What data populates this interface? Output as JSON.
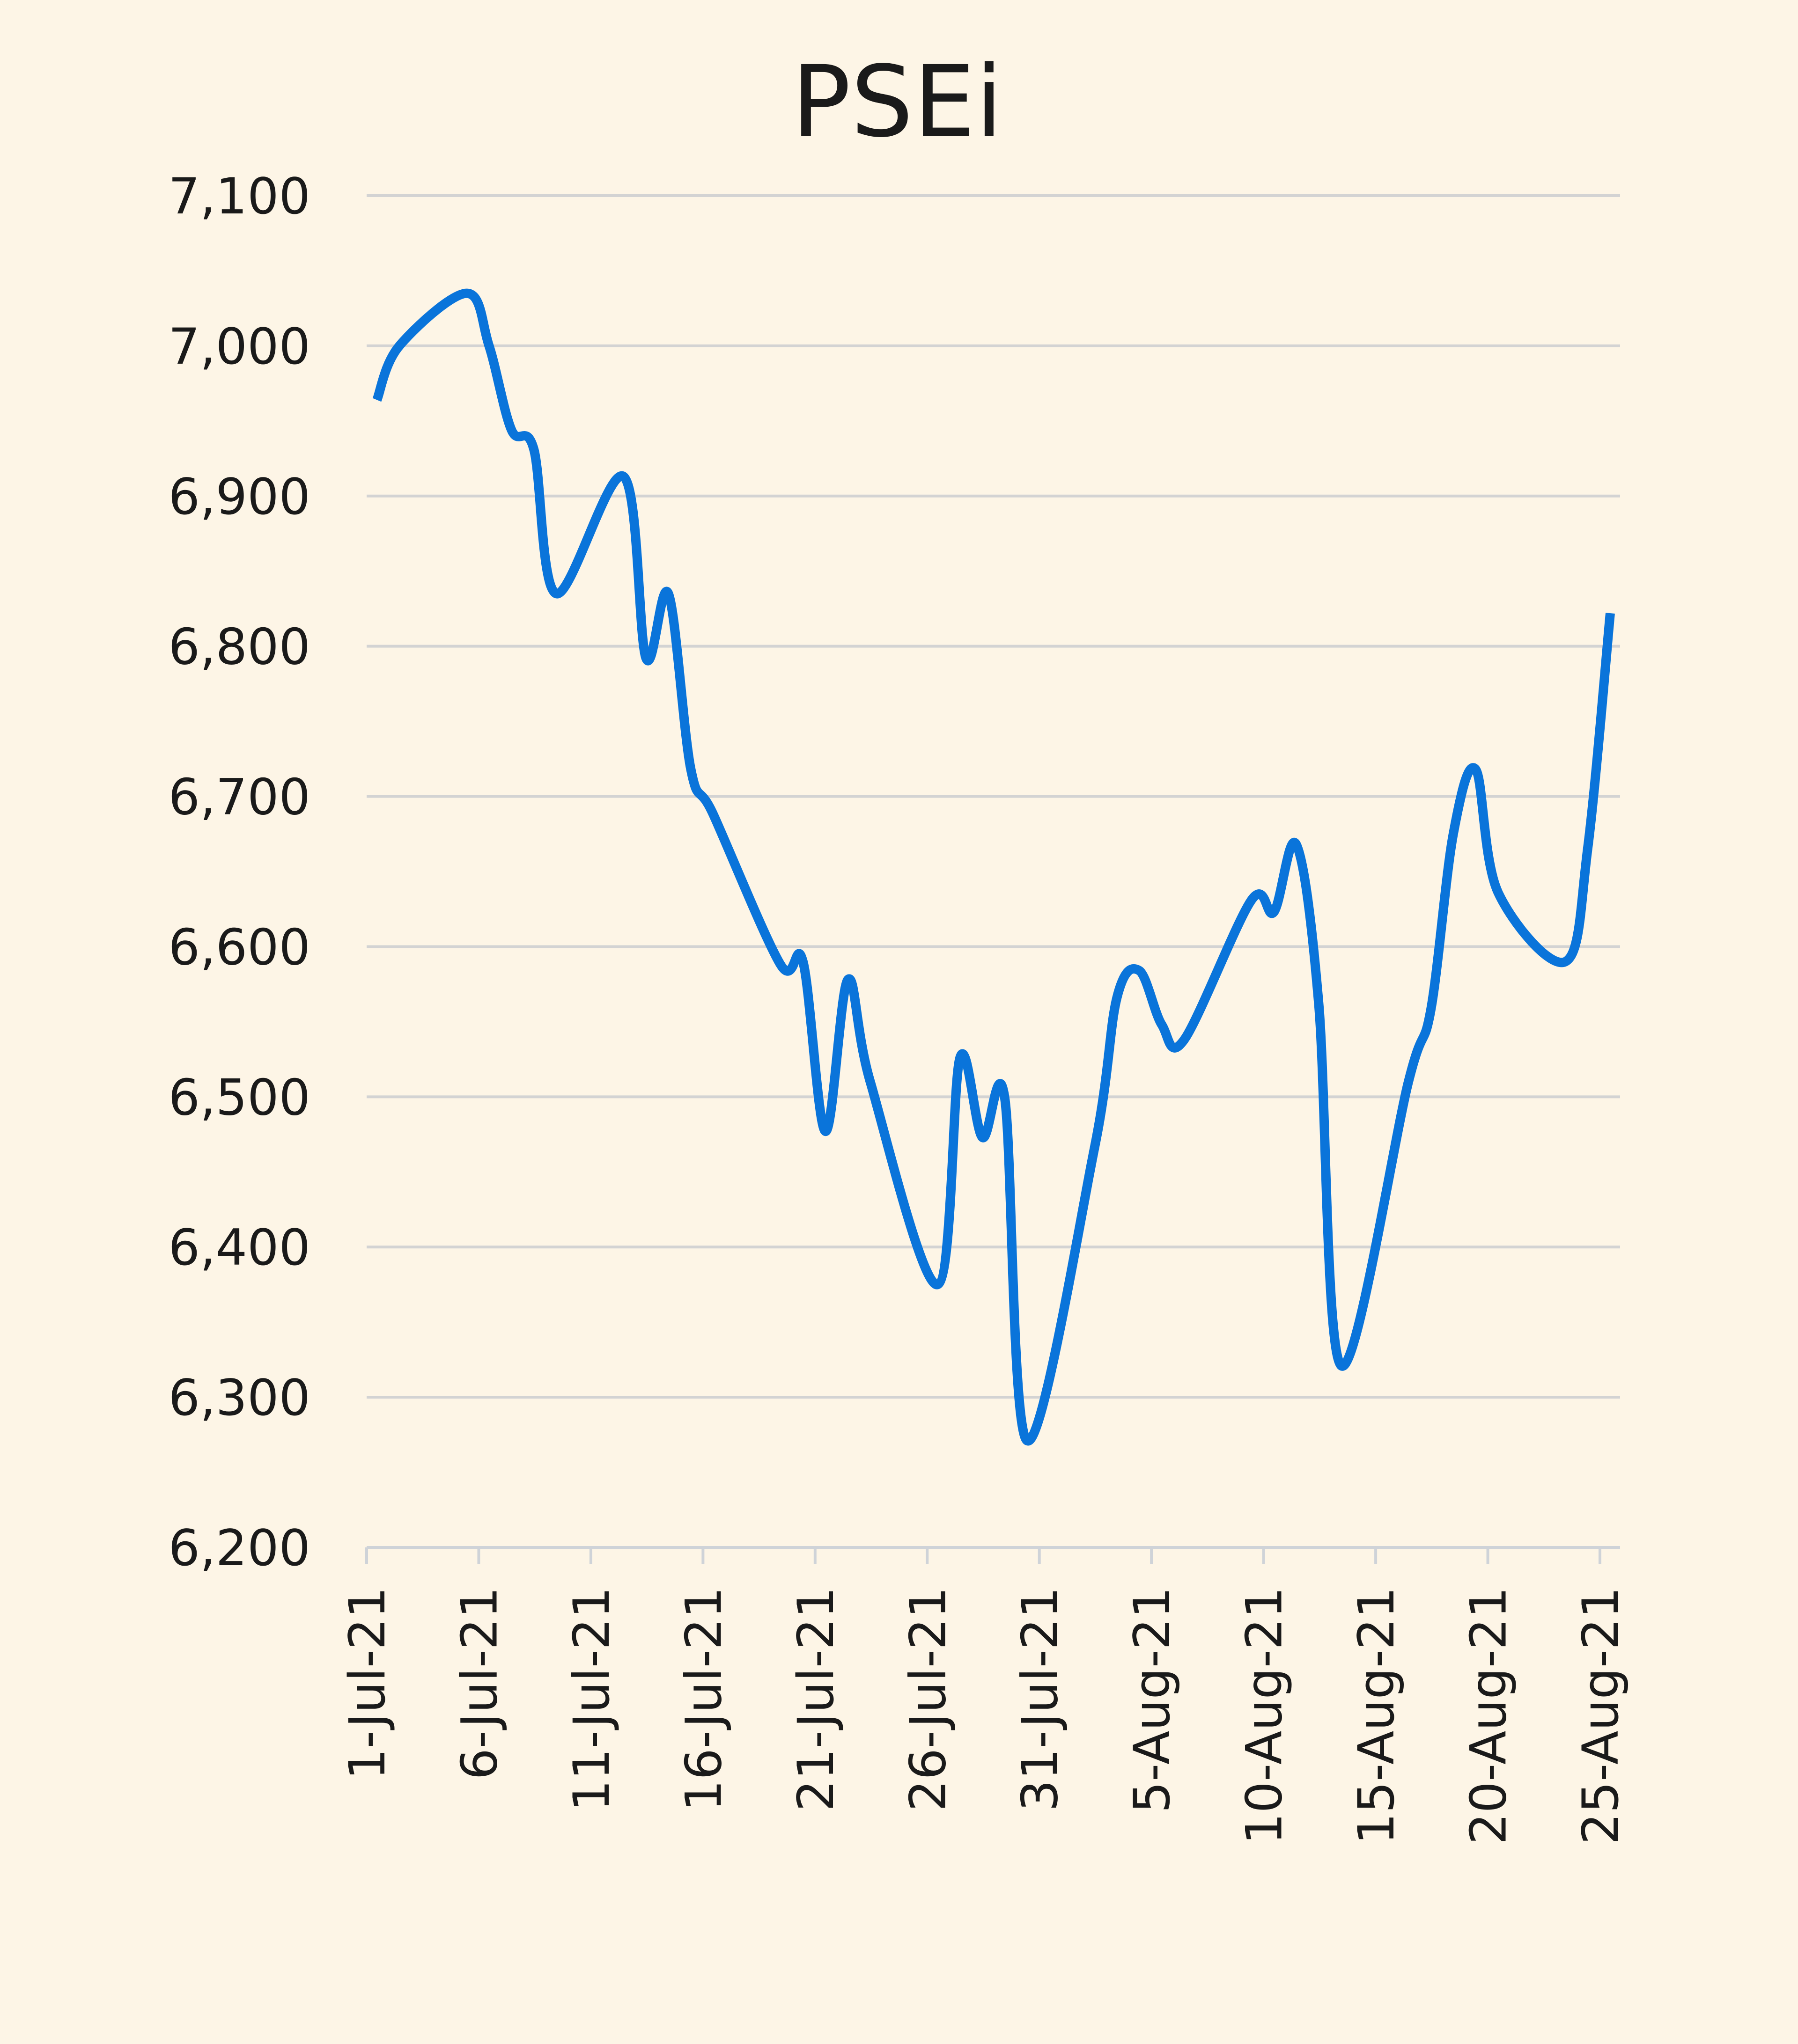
{
  "chart_data": {
    "type": "line",
    "title": "PSEi",
    "xlabel": "",
    "ylabel": "",
    "ylim": [
      6200,
      7100
    ],
    "y_ticks": [
      "6,200",
      "6,300",
      "6,400",
      "6,500",
      "6,600",
      "6,700",
      "6,800",
      "6,900",
      "7,000",
      "7,100"
    ],
    "x_ticks": [
      "1-Jul-21",
      "6-Jul-21",
      "11-Jul-21",
      "16-Jul-21",
      "21-Jul-21",
      "26-Jul-21",
      "31-Jul-21",
      "5-Aug-21",
      "10-Aug-21",
      "15-Aug-21",
      "20-Aug-21",
      "25-Aug-21"
    ],
    "grid": true,
    "legend": "none",
    "smooth": true,
    "colors": {
      "line": "#0a74da",
      "background": "#fdf5e6",
      "grid": "#d3d3d3"
    },
    "series": [
      {
        "x": [
          "2021-07-01",
          "2021-07-02",
          "2021-07-05",
          "2021-07-06",
          "2021-07-07",
          "2021-07-08",
          "2021-07-09",
          "2021-07-12",
          "2021-07-13",
          "2021-07-14",
          "2021-07-15",
          "2021-07-16",
          "2021-07-19",
          "2021-07-20",
          "2021-07-21",
          "2021-07-22",
          "2021-07-23",
          "2021-07-26",
          "2021-07-27",
          "2021-07-28",
          "2021-07-29",
          "2021-07-30",
          "2021-08-02",
          "2021-08-03",
          "2021-08-04",
          "2021-08-05",
          "2021-08-06",
          "2021-08-09",
          "2021-08-10",
          "2021-08-11",
          "2021-08-12",
          "2021-08-13",
          "2021-08-16",
          "2021-08-17",
          "2021-08-18",
          "2021-08-19",
          "2021-08-20",
          "2021-08-23",
          "2021-08-24",
          "2021-08-25"
        ],
        "values": [
          6964,
          7000,
          7035,
          7000,
          6944,
          6931,
          6835,
          6913,
          6792,
          6835,
          6718,
          6688,
          6588,
          6590,
          6477,
          6578,
          6510,
          6375,
          6526,
          6473,
          6499,
          6271,
          6466,
          6566,
          6584,
          6548,
          6538,
          6631,
          6623,
          6668,
          6562,
          6321,
          6510,
          6558,
          6675,
          6718,
          6636,
          6590,
          6666,
          6822
        ]
      }
    ]
  }
}
